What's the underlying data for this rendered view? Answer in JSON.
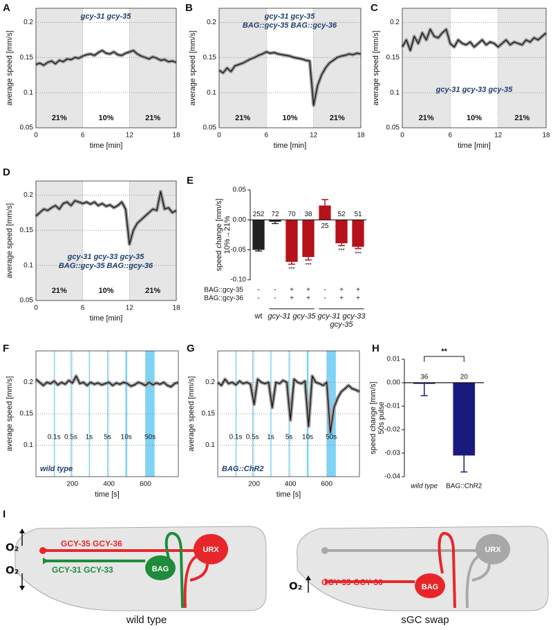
{
  "chart_data": [
    {
      "type": "line",
      "panel": "A",
      "x": [
        0,
        0.5,
        1,
        1.5,
        2,
        2.5,
        3,
        3.5,
        4,
        4.5,
        5,
        5.5,
        6,
        6.5,
        7,
        7.5,
        8,
        8.5,
        9,
        9.5,
        10,
        10.5,
        11,
        11.5,
        12,
        12.5,
        13,
        13.5,
        14,
        14.5,
        15,
        15.5,
        16,
        16.5,
        17,
        17.5,
        18
      ],
      "values": [
        0.14,
        0.142,
        0.139,
        0.143,
        0.145,
        0.141,
        0.146,
        0.144,
        0.148,
        0.147,
        0.15,
        0.149,
        0.152,
        0.154,
        0.155,
        0.153,
        0.157,
        0.16,
        0.156,
        0.155,
        0.158,
        0.154,
        0.153,
        0.156,
        0.158,
        0.16,
        0.155,
        0.152,
        0.15,
        0.148,
        0.151,
        0.149,
        0.146,
        0.147,
        0.144,
        0.145,
        0.143
      ],
      "color": "#111111",
      "band_color": "#9a9a9a",
      "xlim": [
        0,
        18
      ],
      "ylim": [
        0.05,
        0.22
      ],
      "xticks": [
        0,
        6,
        12,
        18
      ],
      "yticks": [
        0.05,
        0.1,
        0.15,
        0.2
      ],
      "xlabel": "time [min]",
      "ylabel": [
        "average speed [mm/s]"
      ],
      "grid": true,
      "periods": [
        {
          "start": 0,
          "end": 6,
          "label": "21%",
          "shaded": true
        },
        {
          "start": 6,
          "end": 12,
          "label": "10%",
          "shaded": false
        },
        {
          "start": 12,
          "end": 18,
          "label": "21%",
          "shaded": true
        }
      ],
      "annotation": [
        "gcy-31 gcy-35"
      ],
      "annotation_color": "#1f3f6e"
    },
    {
      "type": "line",
      "panel": "B",
      "x": [
        0,
        0.5,
        1,
        1.5,
        2,
        2.5,
        3,
        3.5,
        4,
        4.5,
        5,
        5.5,
        6,
        6.5,
        7,
        7.5,
        8,
        8.5,
        9,
        9.5,
        10,
        10.5,
        11,
        11.5,
        12,
        12.5,
        13,
        13.5,
        14,
        14.5,
        15,
        15.5,
        16,
        16.5,
        17,
        17.5,
        18
      ],
      "values": [
        0.132,
        0.128,
        0.135,
        0.13,
        0.138,
        0.14,
        0.142,
        0.145,
        0.148,
        0.15,
        0.153,
        0.155,
        0.158,
        0.156,
        0.157,
        0.155,
        0.154,
        0.153,
        0.152,
        0.15,
        0.149,
        0.148,
        0.146,
        0.145,
        0.082,
        0.11,
        0.125,
        0.135,
        0.142,
        0.146,
        0.15,
        0.152,
        0.153,
        0.155,
        0.154,
        0.156,
        0.155
      ],
      "color": "#111111",
      "band_color": "#9a9a9a",
      "xlim": [
        0,
        18
      ],
      "ylim": [
        0.05,
        0.22
      ],
      "xticks": [
        0,
        6,
        12,
        18
      ],
      "yticks": [
        0.05,
        0.1,
        0.15,
        0.2
      ],
      "xlabel": "time [min]",
      "ylabel": [
        "average speed [mm/s]"
      ],
      "grid": true,
      "periods": [
        {
          "start": 0,
          "end": 6,
          "label": "21%",
          "shaded": true
        },
        {
          "start": 6,
          "end": 12,
          "label": "10%",
          "shaded": false
        },
        {
          "start": 12,
          "end": 18,
          "label": "21%",
          "shaded": true
        }
      ],
      "annotation": [
        "gcy-31 gcy-35",
        "BAG::gcy-35 BAG::gcy-36"
      ],
      "annotation_color": "#1f3f6e"
    },
    {
      "type": "line",
      "panel": "C",
      "x": [
        0,
        0.5,
        1,
        1.5,
        2,
        2.5,
        3,
        3.5,
        4,
        4.5,
        5,
        5.5,
        6,
        6.5,
        7,
        7.5,
        8,
        8.5,
        9,
        9.5,
        10,
        10.5,
        11,
        11.5,
        12,
        12.5,
        13,
        13.5,
        14,
        14.5,
        15,
        15.5,
        16,
        16.5,
        17,
        17.5,
        18
      ],
      "values": [
        0.165,
        0.175,
        0.16,
        0.18,
        0.17,
        0.185,
        0.175,
        0.19,
        0.18,
        0.178,
        0.185,
        0.19,
        0.17,
        0.165,
        0.175,
        0.17,
        0.168,
        0.172,
        0.165,
        0.17,
        0.175,
        0.168,
        0.172,
        0.17,
        0.165,
        0.17,
        0.175,
        0.168,
        0.172,
        0.17,
        0.168,
        0.175,
        0.172,
        0.178,
        0.175,
        0.18,
        0.185
      ],
      "color": "#111111",
      "band_color": "#9a9a9a",
      "xlim": [
        0,
        18
      ],
      "ylim": [
        0.05,
        0.22
      ],
      "xticks": [
        0,
        6,
        12,
        18
      ],
      "yticks": [
        0.05,
        0.1,
        0.15,
        0.2
      ],
      "xlabel": "time [min]",
      "ylabel": [
        "average speed [mm/s]"
      ],
      "grid": true,
      "periods": [
        {
          "start": 0,
          "end": 6,
          "label": "21%",
          "shaded": true
        },
        {
          "start": 6,
          "end": 12,
          "label": "10%",
          "shaded": false
        },
        {
          "start": 12,
          "end": 18,
          "label": "21%",
          "shaded": true
        }
      ],
      "annotation": [
        "gcy-31 gcy-33 gcy-35"
      ],
      "annotation_color": "#1f3f6e"
    },
    {
      "type": "line",
      "panel": "D",
      "x": [
        0,
        0.5,
        1,
        1.5,
        2,
        2.5,
        3,
        3.5,
        4,
        4.5,
        5,
        5.5,
        6,
        6.5,
        7,
        7.5,
        8,
        8.5,
        9,
        9.5,
        10,
        10.5,
        11,
        11.5,
        12,
        12.5,
        13,
        13.5,
        14,
        14.5,
        15,
        15.5,
        16,
        16.5,
        17,
        17.5,
        18
      ],
      "values": [
        0.17,
        0.175,
        0.18,
        0.178,
        0.182,
        0.185,
        0.18,
        0.188,
        0.19,
        0.185,
        0.192,
        0.19,
        0.188,
        0.19,
        0.187,
        0.19,
        0.185,
        0.188,
        0.184,
        0.186,
        0.182,
        0.185,
        0.19,
        0.18,
        0.13,
        0.15,
        0.16,
        0.165,
        0.17,
        0.175,
        0.18,
        0.178,
        0.205,
        0.18,
        0.182,
        0.175,
        0.178
      ],
      "color": "#111111",
      "band_color": "#9a9a9a",
      "xlim": [
        0,
        18
      ],
      "ylim": [
        0.05,
        0.22
      ],
      "xticks": [
        0,
        6,
        12,
        18
      ],
      "yticks": [
        0.05,
        0.1,
        0.15,
        0.2
      ],
      "xlabel": "time [min]",
      "ylabel": [
        "average speed [mm/s]"
      ],
      "grid": true,
      "periods": [
        {
          "start": 0,
          "end": 6,
          "label": "21%",
          "shaded": true
        },
        {
          "start": 6,
          "end": 12,
          "label": "10%",
          "shaded": false
        },
        {
          "start": 12,
          "end": 18,
          "label": "21%",
          "shaded": true
        }
      ],
      "annotation": [
        "gcy-31 gcy-33 gcy-35",
        "BAG::gcy-35 BAG::gcy-36"
      ],
      "annotation_color": "#1f3f6e"
    },
    {
      "type": "bar",
      "panel": "E",
      "values": [
        -0.05,
        -0.003,
        -0.07,
        -0.062,
        0.024,
        -0.039,
        -0.045
      ],
      "errors": [
        0.002,
        0.003,
        0.004,
        0.005,
        0.01,
        0.004,
        0.003
      ],
      "colors": [
        "#222222",
        "#222222",
        "#b5121b",
        "#b5121b",
        "#b5121b",
        "#b5121b",
        "#b5121b"
      ],
      "n": [
        252,
        72,
        70,
        38,
        25,
        52,
        51
      ],
      "significance": [
        null,
        null,
        "***",
        "***",
        null,
        "***",
        "***"
      ],
      "ylim": [
        -0.1,
        0.05
      ],
      "yticks": [
        0.05,
        {
          "value": 0,
          "label": "0.00"
        },
        -0.05,
        {
          "value": -0.1,
          "label": "-0.10"
        }
      ],
      "ylabel": [
        "speed change [mm/s]",
        "10%→21%"
      ],
      "rows": [
        {
          "label": "BAG::gcy-35",
          "signs": [
            "-",
            "-",
            "+",
            "+",
            "-",
            "+",
            "+"
          ]
        },
        {
          "label": "BAG::gcy-36",
          "signs": [
            "-",
            "-",
            "+",
            "+",
            "-",
            "+",
            "+"
          ]
        }
      ],
      "groups": [
        {
          "label": [
            "wt"
          ],
          "from": 0,
          "to": 0
        },
        {
          "label": [
            "gcy-31 gcy-35"
          ],
          "from": 1,
          "to": 3
        },
        {
          "label": [
            "gcy-31 gcy-33",
            "gcy-35"
          ],
          "from": 4,
          "to": 6
        }
      ]
    },
    {
      "type": "line",
      "panel": "F",
      "x": [
        0,
        20,
        40,
        60,
        80,
        100,
        120,
        140,
        160,
        180,
        200,
        220,
        240,
        260,
        280,
        300,
        320,
        340,
        360,
        380,
        400,
        420,
        440,
        460,
        480,
        500,
        520,
        540,
        560,
        580,
        600,
        620,
        640,
        660,
        680,
        700,
        720,
        740,
        760,
        780
      ],
      "values": [
        0.205,
        0.2,
        0.195,
        0.2,
        0.198,
        0.202,
        0.196,
        0.2,
        0.197,
        0.203,
        0.199,
        0.21,
        0.198,
        0.2,
        0.195,
        0.2,
        0.197,
        0.199,
        0.196,
        0.198,
        0.2,
        0.195,
        0.199,
        0.197,
        0.2,
        0.198,
        0.194,
        0.196,
        0.2,
        0.198,
        0.195,
        0.2,
        0.196,
        0.199,
        0.197,
        0.2,
        0.195,
        0.193,
        0.198,
        0.2
      ],
      "color": "#111111",
      "band_color": "#9a9a9a",
      "xlim": [
        0,
        780
      ],
      "ylim": [
        0.05,
        0.25
      ],
      "xticks": [
        200,
        400,
        600
      ],
      "yticks": [
        0.1,
        0.15,
        0.2
      ],
      "xlabel": "time [s]",
      "ylabel": [
        "average speed [mm/s]"
      ],
      "grid": true,
      "pulses": [
        {
          "start": 98,
          "end": 100,
          "label": "0.1s"
        },
        {
          "start": 190,
          "end": 192,
          "label": "0.5s"
        },
        {
          "start": 290,
          "end": 292,
          "label": "1s"
        },
        {
          "start": 390,
          "end": 395,
          "label": "5s"
        },
        {
          "start": 490,
          "end": 500,
          "label": "10s"
        },
        {
          "start": 600,
          "end": 650,
          "label": "50s"
        }
      ],
      "pulse_color": "#7fd3f7",
      "annotation": [
        "wild type"
      ],
      "annotation_color": "#1f3f6e"
    },
    {
      "type": "line",
      "panel": "G",
      "x": [
        0,
        20,
        40,
        60,
        80,
        100,
        120,
        140,
        160,
        180,
        200,
        220,
        240,
        260,
        280,
        300,
        320,
        340,
        360,
        380,
        400,
        420,
        440,
        460,
        480,
        500,
        520,
        540,
        560,
        580,
        600,
        620,
        640,
        660,
        680,
        700,
        720,
        740,
        760,
        780
      ],
      "values": [
        0.2,
        0.195,
        0.205,
        0.198,
        0.2,
        0.196,
        0.202,
        0.198,
        0.2,
        0.197,
        0.165,
        0.205,
        0.2,
        0.198,
        0.2,
        0.16,
        0.2,
        0.198,
        0.203,
        0.2,
        0.14,
        0.205,
        0.2,
        0.198,
        0.202,
        0.13,
        0.21,
        0.2,
        0.198,
        0.195,
        0.2,
        0.12,
        0.16,
        0.175,
        0.185,
        0.19,
        0.195,
        0.19,
        0.188,
        0.185
      ],
      "color": "#111111",
      "band_color": "#9a9a9a",
      "xlim": [
        0,
        780
      ],
      "ylim": [
        0.05,
        0.25
      ],
      "xticks": [
        200,
        400,
        600
      ],
      "yticks": [
        0.1,
        0.15,
        0.2
      ],
      "xlabel": "time [s]",
      "ylabel": [
        "average speed [mm/s]"
      ],
      "grid": true,
      "pulses": [
        {
          "start": 98,
          "end": 100,
          "label": "0.1s"
        },
        {
          "start": 190,
          "end": 192,
          "label": "0.5s"
        },
        {
          "start": 290,
          "end": 292,
          "label": "1s"
        },
        {
          "start": 390,
          "end": 395,
          "label": "5s"
        },
        {
          "start": 490,
          "end": 500,
          "label": "10s"
        },
        {
          "start": 600,
          "end": 650,
          "label": "50s"
        }
      ],
      "pulse_color": "#7fd3f7",
      "annotation": [
        "BAG::ChR2"
      ],
      "annotation_color": "#1f3f6e"
    },
    {
      "type": "bar",
      "panel": "H",
      "categories": [
        "wild type",
        "BAG::ChR2"
      ],
      "values": [
        -0.0005,
        -0.031
      ],
      "errors": [
        0.005,
        0.007
      ],
      "colors": [
        "#1a1a7e",
        "#1a1a7e"
      ],
      "n": [
        36,
        20
      ],
      "bracket": "**",
      "ylim": [
        -0.04,
        0.01
      ],
      "yticks": [
        0.01,
        {
          "value": 0,
          "label": "0.00"
        },
        -0.01,
        -0.02,
        -0.03,
        -0.04
      ],
      "ylabel": [
        "speed change [mm/s]",
        "50s pulse"
      ]
    }
  ],
  "diagram": {
    "panel": "I",
    "left": {
      "o2_top": "O₂",
      "o2_bottom": "O₂",
      "gcy35": "GCY-35 GCY-36",
      "gcy31": "GCY-31 GCY-33",
      "bag": "BAG",
      "urx": "URX",
      "caption": "wild type"
    },
    "right": {
      "o2": "O₂",
      "gcy35": "GCY-35 GCY-36",
      "bag": "BAG",
      "urx": "URX",
      "caption": "sGC swap"
    }
  }
}
